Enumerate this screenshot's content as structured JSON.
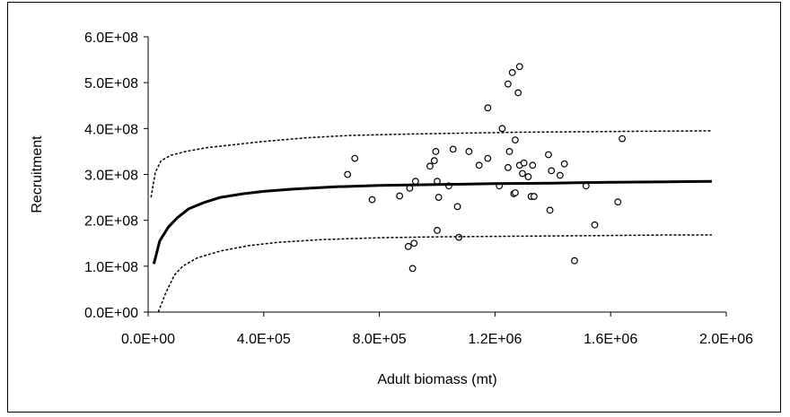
{
  "chart_data": {
    "type": "scatter",
    "title": "",
    "xlabel": "Adult biomass (mt)",
    "ylabel": "Recruitment",
    "xlim": [
      0,
      2000000
    ],
    "ylim": [
      0,
      600000000
    ],
    "x_ticks": [
      0,
      400000,
      800000,
      1200000,
      1600000,
      2000000
    ],
    "x_tick_labels": [
      "0.0E+00",
      "4.0E+05",
      "8.0E+05",
      "1.2E+06",
      "1.6E+06",
      "2.0E+06"
    ],
    "y_ticks": [
      0,
      100000000,
      200000000,
      300000000,
      400000000,
      500000000,
      600000000
    ],
    "y_tick_labels": [
      "0.0E+00",
      "1.0E+08",
      "2.0E+08",
      "3.0E+08",
      "4.0E+08",
      "5.0E+08",
      "6.0E+08"
    ],
    "grid": false,
    "legend": "none",
    "series": [
      {
        "style": "markers",
        "color": "#000000",
        "points": [
          [
            690000,
            300000000
          ],
          [
            715000,
            335000000
          ],
          [
            775000,
            245000000
          ],
          [
            870000,
            253000000
          ],
          [
            900000,
            143000000
          ],
          [
            905000,
            270000000
          ],
          [
            915000,
            95000000
          ],
          [
            920000,
            150000000
          ],
          [
            925000,
            285000000
          ],
          [
            975000,
            318000000
          ],
          [
            990000,
            330000000
          ],
          [
            995000,
            350000000
          ],
          [
            1000000,
            178000000
          ],
          [
            1000000,
            285000000
          ],
          [
            1005000,
            250000000
          ],
          [
            1040000,
            275000000
          ],
          [
            1055000,
            355000000
          ],
          [
            1070000,
            230000000
          ],
          [
            1075000,
            163000000
          ],
          [
            1110000,
            350000000
          ],
          [
            1145000,
            320000000
          ],
          [
            1175000,
            335000000
          ],
          [
            1175000,
            445000000
          ],
          [
            1215000,
            275000000
          ],
          [
            1225000,
            400000000
          ],
          [
            1245000,
            497000000
          ],
          [
            1245000,
            315000000
          ],
          [
            1250000,
            350000000
          ],
          [
            1260000,
            522000000
          ],
          [
            1265000,
            258000000
          ],
          [
            1270000,
            375000000
          ],
          [
            1270000,
            260000000
          ],
          [
            1280000,
            478000000
          ],
          [
            1285000,
            535000000
          ],
          [
            1285000,
            320000000
          ],
          [
            1295000,
            302000000
          ],
          [
            1300000,
            325000000
          ],
          [
            1315000,
            295000000
          ],
          [
            1325000,
            252000000
          ],
          [
            1330000,
            320000000
          ],
          [
            1335000,
            252000000
          ],
          [
            1385000,
            343000000
          ],
          [
            1390000,
            222000000
          ],
          [
            1395000,
            308000000
          ],
          [
            1425000,
            298000000
          ],
          [
            1440000,
            323000000
          ],
          [
            1475000,
            112000000
          ],
          [
            1515000,
            275000000
          ],
          [
            1545000,
            190000000
          ],
          [
            1625000,
            240000000
          ],
          [
            1640000,
            378000000
          ]
        ]
      },
      {
        "style": "solid",
        "color": "#000000",
        "points": [
          [
            20000,
            105000000
          ],
          [
            40000,
            155000000
          ],
          [
            70000,
            185000000
          ],
          [
            100000,
            205000000
          ],
          [
            140000,
            225000000
          ],
          [
            190000,
            238000000
          ],
          [
            250000,
            250000000
          ],
          [
            330000,
            258000000
          ],
          [
            400000,
            263000000
          ],
          [
            500000,
            268000000
          ],
          [
            650000,
            273000000
          ],
          [
            800000,
            276000000
          ],
          [
            1000000,
            278000000
          ],
          [
            1200000,
            280000000
          ],
          [
            1400000,
            281000000
          ],
          [
            1600000,
            283000000
          ],
          [
            1800000,
            284000000
          ],
          [
            1950000,
            285000000
          ]
        ]
      },
      {
        "style": "dashed",
        "color": "#000000",
        "points": [
          [
            10000,
            250000000
          ],
          [
            25000,
            305000000
          ],
          [
            45000,
            330000000
          ],
          [
            80000,
            342000000
          ],
          [
            130000,
            350000000
          ],
          [
            200000,
            358000000
          ],
          [
            300000,
            365000000
          ],
          [
            400000,
            372000000
          ],
          [
            550000,
            380000000
          ],
          [
            700000,
            385000000
          ],
          [
            900000,
            388000000
          ],
          [
            1100000,
            390000000
          ],
          [
            1300000,
            392000000
          ],
          [
            1500000,
            393000000
          ],
          [
            1700000,
            394000000
          ],
          [
            1950000,
            395000000
          ]
        ]
      },
      {
        "style": "dashed",
        "color": "#000000",
        "points": [
          [
            35000,
            0
          ],
          [
            60000,
            40000000
          ],
          [
            90000,
            80000000
          ],
          [
            120000,
            100000000
          ],
          [
            170000,
            118000000
          ],
          [
            250000,
            133000000
          ],
          [
            350000,
            145000000
          ],
          [
            450000,
            152000000
          ],
          [
            600000,
            158000000
          ],
          [
            800000,
            162000000
          ],
          [
            1000000,
            164000000
          ],
          [
            1200000,
            165000000
          ],
          [
            1400000,
            166000000
          ],
          [
            1600000,
            167000000
          ],
          [
            1800000,
            168000000
          ],
          [
            1950000,
            168000000
          ]
        ]
      }
    ]
  }
}
